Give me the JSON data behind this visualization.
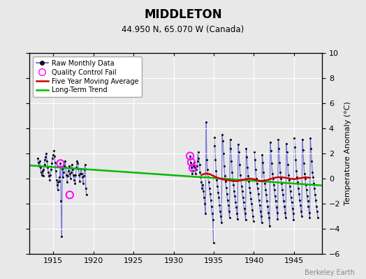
{
  "title": "MIDDLETON",
  "subtitle": "44.950 N, 65.070 W (Canada)",
  "ylabel": "Temperature Anomaly (°C)",
  "watermark": "Berkeley Earth",
  "xlim": [
    1912.0,
    1948.5
  ],
  "ylim": [
    -6,
    10
  ],
  "yticks": [
    -6,
    -4,
    -2,
    0,
    2,
    4,
    6,
    8,
    10
  ],
  "xticks": [
    1915,
    1920,
    1925,
    1930,
    1935,
    1940,
    1945
  ],
  "bg_color": "#e8e8e8",
  "grid_color": "#ffffff",
  "raw_color": "#5555dd",
  "dot_color": "#111111",
  "ma_color": "#cc0000",
  "trend_color": "#00bb00",
  "qc_color": "#ff00ff",
  "raw_monthly": [
    [
      1913.04,
      1.6
    ],
    [
      1913.12,
      1.3
    ],
    [
      1913.21,
      1.0
    ],
    [
      1913.29,
      1.4
    ],
    [
      1913.38,
      0.9
    ],
    [
      1913.46,
      0.5
    ],
    [
      1913.54,
      0.3
    ],
    [
      1913.62,
      0.6
    ],
    [
      1913.71,
      0.2
    ],
    [
      1913.79,
      0.7
    ],
    [
      1913.88,
      1.1
    ],
    [
      1913.96,
      1.5
    ],
    [
      1914.04,
      1.7
    ],
    [
      1914.12,
      2.0
    ],
    [
      1914.21,
      1.4
    ],
    [
      1914.29,
      0.9
    ],
    [
      1914.38,
      0.5
    ],
    [
      1914.46,
      0.2
    ],
    [
      1914.54,
      -0.1
    ],
    [
      1914.62,
      0.3
    ],
    [
      1914.71,
      0.7
    ],
    [
      1914.79,
      1.2
    ],
    [
      1914.88,
      1.6
    ],
    [
      1914.96,
      1.9
    ],
    [
      1915.04,
      2.2
    ],
    [
      1915.12,
      1.8
    ],
    [
      1915.21,
      1.3
    ],
    [
      1915.29,
      0.6
    ],
    [
      1915.38,
      -0.1
    ],
    [
      1915.46,
      -0.5
    ],
    [
      1915.54,
      -0.9
    ],
    [
      1915.62,
      -0.3
    ],
    [
      1915.71,
      0.1
    ],
    [
      1915.79,
      -0.2
    ],
    [
      1915.88,
      1.2
    ],
    [
      1915.96,
      -1.8
    ],
    [
      1916.04,
      -4.6
    ],
    [
      1916.12,
      0.8
    ],
    [
      1916.21,
      0.1
    ],
    [
      1916.29,
      0.5
    ],
    [
      1916.38,
      1.0
    ],
    [
      1916.46,
      1.4
    ],
    [
      1916.54,
      0.9
    ],
    [
      1916.62,
      0.3
    ],
    [
      1916.71,
      -0.3
    ],
    [
      1916.79,
      0.2
    ],
    [
      1916.88,
      0.6
    ],
    [
      1916.96,
      1.0
    ],
    [
      1917.04,
      0.4
    ],
    [
      1917.12,
      0.0
    ],
    [
      1917.21,
      0.5
    ],
    [
      1917.29,
      1.1
    ],
    [
      1917.38,
      0.7
    ],
    [
      1917.46,
      0.3
    ],
    [
      1917.54,
      -0.1
    ],
    [
      1917.62,
      0.3
    ],
    [
      1917.71,
      -0.4
    ],
    [
      1917.79,
      0.3
    ],
    [
      1917.88,
      0.9
    ],
    [
      1917.96,
      1.4
    ],
    [
      1918.04,
      1.2
    ],
    [
      1918.12,
      0.8
    ],
    [
      1918.21,
      0.3
    ],
    [
      1918.29,
      -0.2
    ],
    [
      1918.38,
      0.4
    ],
    [
      1918.46,
      0.8
    ],
    [
      1918.54,
      0.4
    ],
    [
      1918.62,
      0.1
    ],
    [
      1918.71,
      -0.4
    ],
    [
      1918.79,
      0.2
    ],
    [
      1918.88,
      0.7
    ],
    [
      1918.96,
      1.1
    ],
    [
      1919.04,
      -0.8
    ],
    [
      1919.12,
      -1.3
    ],
    [
      1932.04,
      1.8
    ],
    [
      1932.12,
      1.3
    ],
    [
      1932.21,
      0.9
    ],
    [
      1932.29,
      0.4
    ],
    [
      1932.38,
      0.6
    ],
    [
      1932.46,
      1.0
    ],
    [
      1932.54,
      1.3
    ],
    [
      1932.62,
      0.9
    ],
    [
      1932.71,
      0.4
    ],
    [
      1932.79,
      0.7
    ],
    [
      1932.88,
      1.0
    ],
    [
      1932.96,
      1.4
    ],
    [
      1933.04,
      2.1
    ],
    [
      1933.12,
      1.6
    ],
    [
      1933.21,
      1.1
    ],
    [
      1933.29,
      0.5
    ],
    [
      1933.38,
      0.1
    ],
    [
      1933.46,
      -0.3
    ],
    [
      1933.54,
      -0.8
    ],
    [
      1933.62,
      -0.5
    ],
    [
      1933.71,
      -1.0
    ],
    [
      1933.79,
      -1.5
    ],
    [
      1933.88,
      -2.0
    ],
    [
      1933.96,
      -2.8
    ],
    [
      1934.04,
      4.5
    ],
    [
      1934.12,
      1.5
    ],
    [
      1934.21,
      0.7
    ],
    [
      1934.29,
      0.1
    ],
    [
      1934.38,
      -0.3
    ],
    [
      1934.46,
      -0.8
    ],
    [
      1934.54,
      -1.2
    ],
    [
      1934.62,
      -1.7
    ],
    [
      1934.71,
      -2.2
    ],
    [
      1934.79,
      -2.8
    ],
    [
      1934.88,
      -3.3
    ],
    [
      1934.96,
      -5.1
    ],
    [
      1935.04,
      3.3
    ],
    [
      1935.12,
      2.6
    ],
    [
      1935.21,
      1.5
    ],
    [
      1935.29,
      0.6
    ],
    [
      1935.38,
      -0.1
    ],
    [
      1935.46,
      -0.6
    ],
    [
      1935.54,
      -1.1
    ],
    [
      1935.62,
      -1.5
    ],
    [
      1935.71,
      -2.1
    ],
    [
      1935.79,
      -2.6
    ],
    [
      1935.88,
      -3.0
    ],
    [
      1935.96,
      -3.5
    ],
    [
      1936.04,
      3.5
    ],
    [
      1936.12,
      3.0
    ],
    [
      1936.21,
      2.0
    ],
    [
      1936.29,
      1.0
    ],
    [
      1936.38,
      0.2
    ],
    [
      1936.46,
      -0.2
    ],
    [
      1936.54,
      -0.7
    ],
    [
      1936.62,
      -1.2
    ],
    [
      1936.71,
      -1.7
    ],
    [
      1936.79,
      -2.1
    ],
    [
      1936.88,
      -2.6
    ],
    [
      1936.96,
      -3.1
    ],
    [
      1937.04,
      3.1
    ],
    [
      1937.12,
      2.4
    ],
    [
      1937.21,
      1.4
    ],
    [
      1937.29,
      0.5
    ],
    [
      1937.38,
      -0.1
    ],
    [
      1937.46,
      -0.5
    ],
    [
      1937.54,
      -1.0
    ],
    [
      1937.62,
      -1.4
    ],
    [
      1937.71,
      -1.9
    ],
    [
      1937.79,
      -2.3
    ],
    [
      1937.88,
      -2.8
    ],
    [
      1937.96,
      -3.2
    ],
    [
      1938.04,
      2.7
    ],
    [
      1938.12,
      2.1
    ],
    [
      1938.21,
      1.1
    ],
    [
      1938.29,
      0.3
    ],
    [
      1938.38,
      -0.1
    ],
    [
      1938.46,
      -0.6
    ],
    [
      1938.54,
      -1.0
    ],
    [
      1938.62,
      -1.5
    ],
    [
      1938.71,
      -1.9
    ],
    [
      1938.79,
      -2.4
    ],
    [
      1938.88,
      -2.8
    ],
    [
      1938.96,
      -3.3
    ],
    [
      1939.04,
      2.4
    ],
    [
      1939.12,
      1.7
    ],
    [
      1939.21,
      0.9
    ],
    [
      1939.29,
      0.2
    ],
    [
      1939.38,
      -0.2
    ],
    [
      1939.46,
      -0.7
    ],
    [
      1939.54,
      -1.1
    ],
    [
      1939.62,
      -1.6
    ],
    [
      1939.71,
      -2.0
    ],
    [
      1939.79,
      -2.5
    ],
    [
      1939.88,
      -3.0
    ],
    [
      1939.96,
      -3.4
    ],
    [
      1940.04,
      2.1
    ],
    [
      1940.12,
      1.5
    ],
    [
      1940.21,
      0.7
    ],
    [
      1940.29,
      0.0
    ],
    [
      1940.38,
      -0.4
    ],
    [
      1940.46,
      -0.8
    ],
    [
      1940.54,
      -1.2
    ],
    [
      1940.62,
      -1.7
    ],
    [
      1940.71,
      -2.1
    ],
    [
      1940.79,
      -2.6
    ],
    [
      1940.88,
      -3.0
    ],
    [
      1940.96,
      -3.5
    ],
    [
      1941.04,
      1.9
    ],
    [
      1941.12,
      1.3
    ],
    [
      1941.21,
      0.5
    ],
    [
      1941.29,
      -0.1
    ],
    [
      1941.38,
      -0.4
    ],
    [
      1941.46,
      -0.9
    ],
    [
      1941.54,
      -1.3
    ],
    [
      1941.62,
      -1.8
    ],
    [
      1941.71,
      -2.2
    ],
    [
      1941.79,
      -2.7
    ],
    [
      1941.88,
      -3.1
    ],
    [
      1941.96,
      -3.8
    ],
    [
      1942.04,
      2.9
    ],
    [
      1942.12,
      2.2
    ],
    [
      1942.21,
      1.2
    ],
    [
      1942.29,
      0.4
    ],
    [
      1942.38,
      0.0
    ],
    [
      1942.46,
      -0.5
    ],
    [
      1942.54,
      -0.9
    ],
    [
      1942.62,
      -1.4
    ],
    [
      1942.71,
      -1.8
    ],
    [
      1942.79,
      -2.3
    ],
    [
      1942.88,
      -2.7
    ],
    [
      1942.96,
      -3.2
    ],
    [
      1943.04,
      3.1
    ],
    [
      1943.12,
      2.4
    ],
    [
      1943.21,
      1.3
    ],
    [
      1943.29,
      0.5
    ],
    [
      1943.38,
      0.0
    ],
    [
      1943.46,
      -0.4
    ],
    [
      1943.54,
      -0.9
    ],
    [
      1943.62,
      -1.3
    ],
    [
      1943.71,
      -1.8
    ],
    [
      1943.79,
      -2.2
    ],
    [
      1943.88,
      -2.7
    ],
    [
      1943.96,
      -3.1
    ],
    [
      1944.04,
      2.8
    ],
    [
      1944.12,
      2.1
    ],
    [
      1944.21,
      1.1
    ],
    [
      1944.29,
      0.3
    ],
    [
      1944.38,
      -0.1
    ],
    [
      1944.46,
      -0.6
    ],
    [
      1944.54,
      -1.0
    ],
    [
      1944.62,
      -1.5
    ],
    [
      1944.71,
      -1.9
    ],
    [
      1944.79,
      -2.4
    ],
    [
      1944.88,
      -2.8
    ],
    [
      1944.96,
      -3.3
    ],
    [
      1945.04,
      3.2
    ],
    [
      1945.12,
      2.5
    ],
    [
      1945.21,
      1.5
    ],
    [
      1945.29,
      0.6
    ],
    [
      1945.38,
      0.1
    ],
    [
      1945.46,
      -0.3
    ],
    [
      1945.54,
      -0.8
    ],
    [
      1945.62,
      -1.2
    ],
    [
      1945.71,
      -1.7
    ],
    [
      1945.79,
      -2.1
    ],
    [
      1945.88,
      -2.6
    ],
    [
      1945.96,
      -3.0
    ],
    [
      1946.04,
      3.1
    ],
    [
      1946.12,
      2.3
    ],
    [
      1946.21,
      1.2
    ],
    [
      1946.29,
      0.4
    ],
    [
      1946.38,
      0.0
    ],
    [
      1946.46,
      -0.5
    ],
    [
      1946.54,
      -0.9
    ],
    [
      1946.62,
      -1.4
    ],
    [
      1946.71,
      -1.8
    ],
    [
      1946.79,
      -2.2
    ],
    [
      1946.88,
      -2.7
    ],
    [
      1946.96,
      -3.1
    ],
    [
      1947.04,
      3.2
    ],
    [
      1947.12,
      2.4
    ],
    [
      1947.21,
      1.4
    ],
    [
      1947.29,
      0.5
    ],
    [
      1947.38,
      0.1
    ],
    [
      1947.46,
      -0.4
    ],
    [
      1947.54,
      -0.8
    ],
    [
      1947.62,
      -1.3
    ],
    [
      1947.71,
      -1.7
    ],
    [
      1947.79,
      -2.2
    ],
    [
      1947.88,
      -2.6
    ],
    [
      1947.96,
      -3.1
    ]
  ],
  "qc_fail_points": [
    [
      1915.88,
      1.2
    ],
    [
      1917.04,
      -1.3
    ],
    [
      1932.04,
      1.8
    ],
    [
      1932.21,
      1.3
    ],
    [
      1932.38,
      0.85
    ]
  ],
  "moving_avg": [
    [
      1933.5,
      0.3
    ],
    [
      1934.0,
      0.4
    ],
    [
      1934.5,
      0.35
    ],
    [
      1935.0,
      0.2
    ],
    [
      1935.5,
      0.05
    ],
    [
      1936.0,
      -0.05
    ],
    [
      1936.5,
      -0.1
    ],
    [
      1937.0,
      -0.15
    ],
    [
      1937.5,
      -0.2
    ],
    [
      1938.0,
      -0.2
    ],
    [
      1938.5,
      -0.1
    ],
    [
      1939.0,
      -0.05
    ],
    [
      1939.5,
      0.0
    ],
    [
      1940.0,
      -0.05
    ],
    [
      1940.5,
      -0.15
    ],
    [
      1941.0,
      -0.2
    ],
    [
      1941.5,
      -0.15
    ],
    [
      1942.0,
      -0.05
    ],
    [
      1942.5,
      0.05
    ],
    [
      1943.0,
      0.1
    ],
    [
      1943.5,
      0.1
    ],
    [
      1944.0,
      0.05
    ],
    [
      1944.5,
      0.0
    ],
    [
      1945.0,
      -0.05
    ],
    [
      1945.5,
      0.0
    ],
    [
      1946.0,
      0.05
    ],
    [
      1946.5,
      0.1
    ],
    [
      1947.0,
      0.05
    ]
  ],
  "trend_line": [
    [
      1912.0,
      1.05
    ],
    [
      1948.5,
      -0.55
    ]
  ]
}
